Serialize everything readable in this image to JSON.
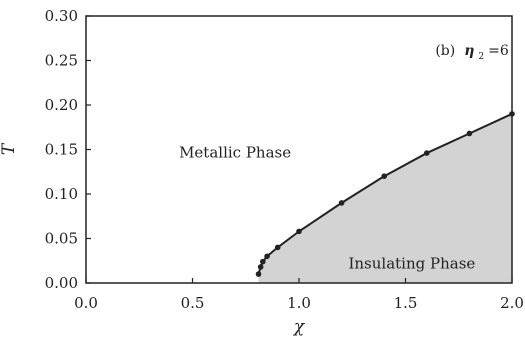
{
  "chart_data": {
    "type": "area",
    "xlabel": "χ",
    "ylabel": "T",
    "xlim": [
      0.0,
      2.0
    ],
    "ylim": [
      0.0,
      0.3
    ],
    "xticks": [
      "0.0",
      "0.5",
      "1.0",
      "1.5",
      "2.0"
    ],
    "yticks": [
      "0.00",
      "0.05",
      "0.10",
      "0.15",
      "0.20",
      "0.25",
      "0.30"
    ],
    "grid": false,
    "series": [
      {
        "x": [
          0.81,
          0.82,
          0.83,
          0.85,
          0.9,
          1.0,
          1.2,
          1.4,
          1.6,
          1.8,
          2.0
        ],
        "y": [
          0.01,
          0.018,
          0.024,
          0.03,
          0.04,
          0.058,
          0.09,
          0.12,
          0.146,
          0.168,
          0.19
        ]
      }
    ],
    "fill_color": "#d3d3d3",
    "line_color": "#222222",
    "annotations": {
      "metallic": "Metallic Phase",
      "insulating": "Insulating Phase",
      "panel_prefix": "(b)",
      "panel_symbol": "η",
      "panel_subscript": "2",
      "panel_value": "=6"
    }
  }
}
